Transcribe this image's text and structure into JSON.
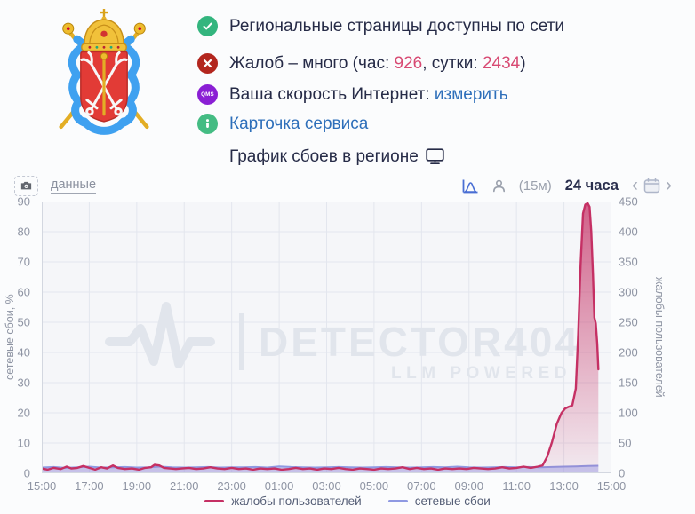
{
  "colors": {
    "ok_green": "#33b57e",
    "err_red": "#b3261e",
    "qms_purple": "#8a1fd4",
    "info_green": "#44bc83",
    "link_blue": "#2e6fba",
    "pink": "#d84a73",
    "crimson": "#c53064",
    "periwinkle": "#8f99e2",
    "watermark_gray": "#e1e5ec"
  },
  "status": {
    "row1": {
      "text": "Региональные страницы доступны по сети"
    },
    "row2": {
      "prefix": "Жалоб – много (час: ",
      "hour": "926",
      "mid": ", сутки: ",
      "day": "2434",
      "suffix": ")"
    },
    "row3": {
      "badge": "QMS",
      "text": "Ваша скорость Интернет: ",
      "link": "измерить"
    },
    "row4": {
      "link": "Карточка сервиса"
    },
    "row5": {
      "text": "График сбоев в регионе"
    }
  },
  "chart_header": {
    "data_link": "данные",
    "interval": "(15м)",
    "range": "24 часа",
    "prev": "‹",
    "next": "›"
  },
  "legend": [
    {
      "label": "жалобы пользователей",
      "color": "#c53064"
    },
    {
      "label": "сетевые сбои",
      "color": "#8f99e2"
    }
  ],
  "chart_data": {
    "type": "area",
    "title": "График сбоев в регионе",
    "watermark": {
      "line1": "DETECTOR404",
      "line2": "LLM POWERED"
    },
    "x_domain_hours": 24,
    "x_ticks": [
      "15:00",
      "17:00",
      "19:00",
      "21:00",
      "23:00",
      "01:00",
      "03:00",
      "05:00",
      "07:00",
      "09:00",
      "11:00",
      "13:00",
      "15:00"
    ],
    "left_axis": {
      "label": "сетевые сбои, %",
      "min": 0,
      "max": 90,
      "ticks": [
        0,
        10,
        20,
        30,
        40,
        50,
        60,
        70,
        80,
        90
      ]
    },
    "right_axis": {
      "label": "жалобы пользователей",
      "min": 0,
      "max": 450,
      "ticks": [
        0,
        50,
        100,
        150,
        200,
        250,
        300,
        350,
        400,
        450
      ]
    },
    "grid": true,
    "legend_position": "bottom",
    "series": [
      {
        "name": "жалобы пользователей",
        "axis": "right",
        "color": "#c53064",
        "fill": "gradient",
        "points": [
          [
            0,
            8
          ],
          [
            0.25,
            6
          ],
          [
            0.5,
            9
          ],
          [
            0.8,
            7
          ],
          [
            1.05,
            11
          ],
          [
            1.25,
            8
          ],
          [
            1.5,
            9
          ],
          [
            1.75,
            12
          ],
          [
            2,
            9
          ],
          [
            2.25,
            6
          ],
          [
            2.5,
            10
          ],
          [
            2.75,
            8
          ],
          [
            3,
            13
          ],
          [
            3.2,
            9
          ],
          [
            3.5,
            7
          ],
          [
            3.8,
            8
          ],
          [
            4.1,
            6
          ],
          [
            4.35,
            9
          ],
          [
            4.6,
            10
          ],
          [
            4.75,
            14
          ],
          [
            4.95,
            13
          ],
          [
            5.15,
            9
          ],
          [
            5.4,
            8
          ],
          [
            5.65,
            7
          ],
          [
            5.9,
            8
          ],
          [
            6.2,
            9
          ],
          [
            6.5,
            7
          ],
          [
            6.8,
            8
          ],
          [
            7.1,
            10
          ],
          [
            7.4,
            8
          ],
          [
            7.7,
            7
          ],
          [
            8,
            9
          ],
          [
            8.3,
            7
          ],
          [
            8.6,
            8
          ],
          [
            8.9,
            6
          ],
          [
            9.2,
            8
          ],
          [
            9.5,
            7
          ],
          [
            9.8,
            8
          ],
          [
            10.1,
            6
          ],
          [
            10.4,
            7
          ],
          [
            10.7,
            9
          ],
          [
            11,
            7
          ],
          [
            11.3,
            8
          ],
          [
            11.6,
            6
          ],
          [
            11.9,
            8
          ],
          [
            12.2,
            7
          ],
          [
            12.5,
            9
          ],
          [
            12.8,
            7
          ],
          [
            13.1,
            6
          ],
          [
            13.4,
            8
          ],
          [
            13.7,
            7
          ],
          [
            14,
            6
          ],
          [
            14.3,
            8
          ],
          [
            14.6,
            7
          ],
          [
            14.9,
            8
          ],
          [
            15.2,
            10
          ],
          [
            15.5,
            7
          ],
          [
            15.8,
            9
          ],
          [
            16.1,
            7
          ],
          [
            16.4,
            8
          ],
          [
            16.7,
            6
          ],
          [
            17,
            8
          ],
          [
            17.3,
            7
          ],
          [
            17.6,
            8
          ],
          [
            17.9,
            7
          ],
          [
            18.2,
            9
          ],
          [
            18.5,
            8
          ],
          [
            18.8,
            7
          ],
          [
            19.1,
            8
          ],
          [
            19.4,
            10
          ],
          [
            19.7,
            8
          ],
          [
            20,
            9
          ],
          [
            20.3,
            11
          ],
          [
            20.6,
            9
          ],
          [
            20.9,
            11
          ],
          [
            21.1,
            13
          ],
          [
            21.3,
            28
          ],
          [
            21.5,
            52
          ],
          [
            21.7,
            82
          ],
          [
            21.9,
            100
          ],
          [
            22.05,
            107
          ],
          [
            22.2,
            110
          ],
          [
            22.35,
            112
          ],
          [
            22.5,
            140
          ],
          [
            22.6,
            230
          ],
          [
            22.7,
            345
          ],
          [
            22.8,
            430
          ],
          [
            22.9,
            445
          ],
          [
            23,
            447
          ],
          [
            23.08,
            441
          ],
          [
            23.15,
            400
          ],
          [
            23.22,
            330
          ],
          [
            23.28,
            258
          ],
          [
            23.34,
            248
          ],
          [
            23.4,
            215
          ],
          [
            23.45,
            172
          ]
        ]
      },
      {
        "name": "сетевые сбои",
        "axis": "left",
        "color": "#8f99e2",
        "fill": "rgba(151,160,235,0.5)",
        "points": [
          [
            0,
            1.9
          ],
          [
            0.5,
            2.1
          ],
          [
            1,
            1.8
          ],
          [
            1.5,
            2
          ],
          [
            2,
            2.2
          ],
          [
            2.5,
            1.9
          ],
          [
            3,
            2
          ],
          [
            3.5,
            2.1
          ],
          [
            4,
            1.9
          ],
          [
            4.5,
            2
          ],
          [
            5,
            2.2
          ],
          [
            5.5,
            2
          ],
          [
            6,
            1.9
          ],
          [
            6.5,
            2
          ],
          [
            7,
            2.1
          ],
          [
            7.5,
            1.9
          ],
          [
            8,
            2
          ],
          [
            8.5,
            2
          ],
          [
            9,
            2.1
          ],
          [
            9.5,
            1.9
          ],
          [
            10,
            2.3
          ],
          [
            10.5,
            2.1
          ],
          [
            11,
            2
          ],
          [
            11.5,
            1.9
          ],
          [
            12,
            2
          ],
          [
            12.5,
            2.1
          ],
          [
            13,
            2
          ],
          [
            13.5,
            1.9
          ],
          [
            14,
            2
          ],
          [
            14.5,
            2.1
          ],
          [
            15,
            2
          ],
          [
            15.5,
            1.9
          ],
          [
            16,
            2
          ],
          [
            16.5,
            2.1
          ],
          [
            17,
            2
          ],
          [
            17.5,
            2.2
          ],
          [
            18,
            2
          ],
          [
            18.5,
            1.9
          ],
          [
            19,
            2
          ],
          [
            19.5,
            2.1
          ],
          [
            20,
            2
          ],
          [
            20.5,
            2.1
          ],
          [
            21,
            2
          ],
          [
            21.5,
            2.1
          ],
          [
            22,
            2.2
          ],
          [
            22.5,
            2.3
          ],
          [
            23,
            2.4
          ],
          [
            23.45,
            2.5
          ]
        ]
      }
    ]
  }
}
